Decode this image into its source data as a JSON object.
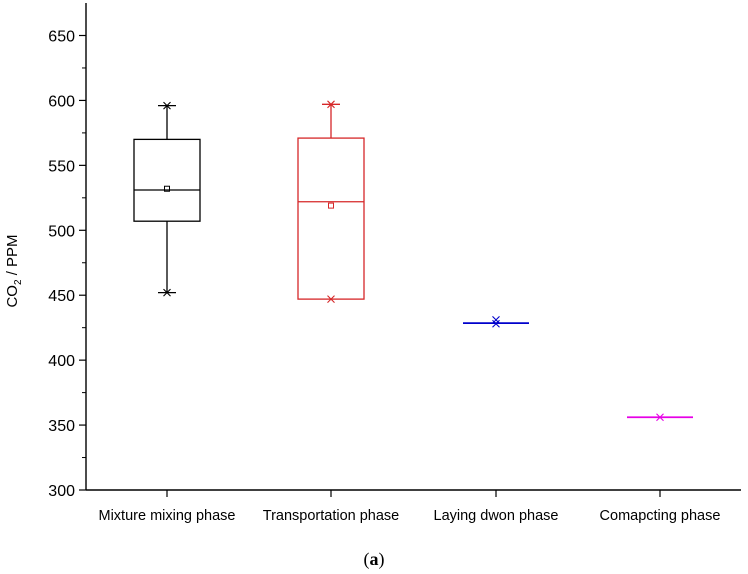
{
  "chart_data": {
    "type": "box",
    "title": "",
    "xlabel": "",
    "ylabel": {
      "main": "CO",
      "subscript": "2",
      "rest": " / PPM"
    },
    "ylim": [
      300,
      670
    ],
    "yticks": [
      300,
      350,
      400,
      450,
      500,
      550,
      600,
      650
    ],
    "grid": false,
    "categories": [
      "Mixture mixing phase",
      "Transportation phase",
      "Laying dwon phase",
      "Comapcting phase"
    ],
    "series": [
      {
        "category": "Mixture mixing phase",
        "color": "#000000",
        "min": 452,
        "q1": 507,
        "median": 531,
        "q3": 570,
        "max": 596,
        "mean": 532,
        "outliers_x": [
          596,
          452
        ]
      },
      {
        "category": "Transportation phase",
        "color": "#d62728",
        "min": 447,
        "q1": 447,
        "median": 522,
        "q3": 571,
        "max": 597,
        "mean": 519,
        "outliers_x": [
          597,
          447
        ]
      },
      {
        "category": "Laying dwon phase",
        "color": "#0000cc",
        "min": 428,
        "q1": 428,
        "median": 428.5,
        "q3": 429,
        "max": 429,
        "mean": 429,
        "outliers_x": [
          431,
          428
        ]
      },
      {
        "category": "Comapcting phase",
        "color": "#e600e6",
        "min": 356,
        "q1": 356,
        "median": 356,
        "q3": 356,
        "max": 356,
        "mean": 356,
        "outliers_x": [
          356
        ]
      }
    ]
  },
  "caption": {
    "open": "(",
    "letter": "a",
    "close": ")"
  }
}
